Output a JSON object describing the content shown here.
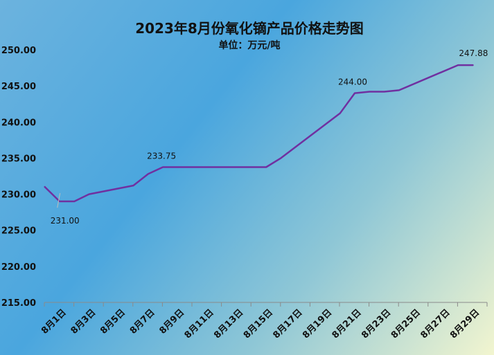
{
  "chart_data": {
    "type": "line",
    "title": "2023年8月份氧化镝产品价格走势图",
    "subtitle": "单位：万元/吨",
    "ylim": [
      215,
      250
    ],
    "y_ticks": [
      "215.00",
      "220.00",
      "225.00",
      "230.00",
      "235.00",
      "240.00",
      "245.00",
      "250.00"
    ],
    "x_ticks": [
      "8月1日",
      "8月3日",
      "8月5日",
      "8月7日",
      "8月9日",
      "8月11日",
      "8月13日",
      "8月15日",
      "8月17日",
      "8月19日",
      "8月21日",
      "8月23日",
      "8月25日",
      "8月27日",
      "8月29日"
    ],
    "grid": false,
    "series": [
      {
        "color": "#7030a0",
        "points": [
          [
            "8/1",
            231.0
          ],
          [
            "8/2",
            229.0
          ],
          [
            "8/3",
            229.0
          ],
          [
            "8/4",
            230.0
          ],
          [
            "8/7",
            231.2
          ],
          [
            "8/8",
            232.8
          ],
          [
            "8/9",
            233.75
          ],
          [
            "8/10",
            233.75
          ],
          [
            "8/14",
            233.75
          ],
          [
            "8/16",
            233.75
          ],
          [
            "8/17",
            235.0
          ],
          [
            "8/21",
            241.2
          ],
          [
            "8/22",
            244.0
          ],
          [
            "8/23",
            244.2
          ],
          [
            "8/24",
            244.2
          ],
          [
            "8/25",
            244.4
          ],
          [
            "8/29",
            247.88
          ],
          [
            "8/30",
            247.88
          ]
        ]
      }
    ],
    "data_labels": [
      {
        "text": "231.00",
        "x": "8/1",
        "y": 231.0
      },
      {
        "text": "233.75",
        "x": "8/9",
        "y": 233.75
      },
      {
        "text": "244.00",
        "x": "8/22",
        "y": 244.0
      },
      {
        "text": "247.88",
        "x": "8/30",
        "y": 247.88
      }
    ]
  }
}
